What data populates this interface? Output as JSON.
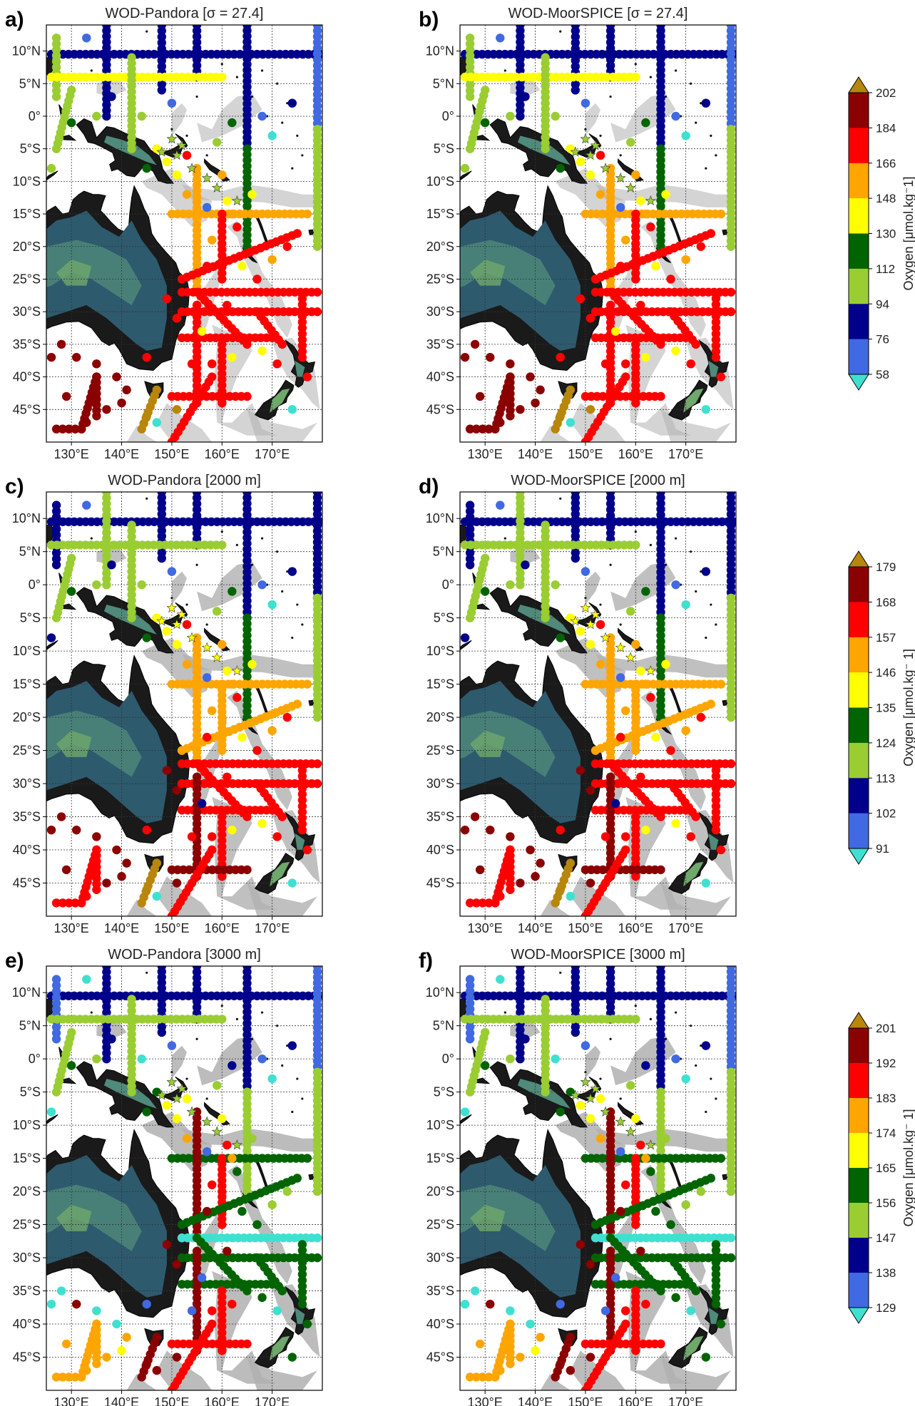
{
  "panels": [
    {
      "label": "a)",
      "title": "WOD-Pandora [σ = 27.4]",
      "group": 0
    },
    {
      "label": "b)",
      "title": "WOD-MoorSPICE [σ = 27.4]",
      "group": 0
    },
    {
      "label": "c)",
      "title": "WOD-Pandora [2000 m]",
      "group": 1
    },
    {
      "label": "d)",
      "title": "WOD-MoorSPICE [2000 m]",
      "group": 1
    },
    {
      "label": "e)",
      "title": "WOD-Pandora [3000 m]",
      "group": 2
    },
    {
      "label": "f)",
      "title": "WOD-MoorSPICE [3000 m]",
      "group": 2
    }
  ],
  "axes": {
    "lat_labels": [
      "10°N",
      "5°N",
      "0°",
      "5°S",
      "10°S",
      "15°S",
      "20°S",
      "25°S",
      "30°S",
      "35°S",
      "40°S",
      "45°S"
    ],
    "lat_values": [
      10,
      5,
      0,
      -5,
      -10,
      -15,
      -20,
      -25,
      -30,
      -35,
      -40,
      -45
    ],
    "lon_labels": [
      "130°E",
      "140°E",
      "150°E",
      "160°E",
      "170°E"
    ],
    "lon_values": [
      130,
      140,
      150,
      160,
      170
    ],
    "lon_range": [
      125,
      180
    ],
    "lat_range": [
      -50,
      14
    ]
  },
  "colorbars": [
    {
      "label": "Oxygen [μmol.kg⁻1]",
      "ticks": [
        "202",
        "184",
        "166",
        "148",
        "130",
        "112",
        "94",
        "76",
        "58"
      ]
    },
    {
      "label": "Oxygen [μmol.kg⁻ 1]",
      "ticks": [
        "179",
        "168",
        "157",
        "146",
        "135",
        "124",
        "113",
        "102",
        "91"
      ]
    },
    {
      "label": "Oxygen [μmol.kg⁻ 1]",
      "ticks": [
        "201",
        "192",
        "183",
        "174",
        "165",
        "156",
        "147",
        "138",
        "129"
      ]
    }
  ],
  "colors": {
    "under": "#40e0d0",
    "levels": [
      "#4169e1",
      "#00008b",
      "#9acd32",
      "#006400",
      "#ffff00",
      "#ffa500",
      "#ff0000",
      "#8b0000"
    ],
    "over": "#b8860b",
    "land_dark": "#1a1a1a",
    "land_mid": "#2e5a6e",
    "land_light": "#4f8a7a",
    "land_green": "#6fa86b",
    "seafloor_shallow": "#b0b0b0"
  }
}
